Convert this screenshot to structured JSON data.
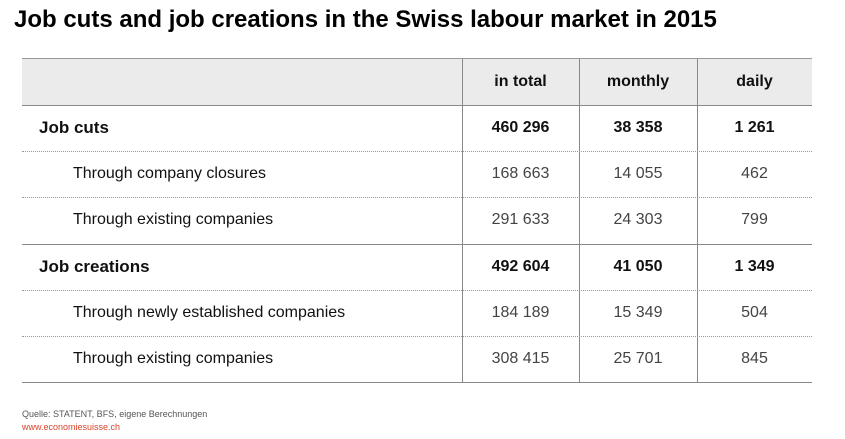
{
  "header": {
    "title": "Job cuts and job creations in the Swiss labour market in 2015"
  },
  "table": {
    "columns": [
      "in total",
      "monthly",
      "daily"
    ],
    "rows": [
      {
        "label": "Job cuts",
        "bold": true,
        "cells": [
          "460 296",
          "38 358",
          "1 261"
        ]
      },
      {
        "label": "Through company closures",
        "bold": false,
        "cells": [
          "168 663",
          "14 055",
          "462"
        ]
      },
      {
        "label": "Through existing companies",
        "bold": false,
        "cells": [
          "291 633",
          "24 303",
          "799"
        ]
      },
      {
        "label": "Job creations",
        "bold": true,
        "cells": [
          "492 604",
          "41 050",
          "1 349"
        ]
      },
      {
        "label": "Through newly established companies",
        "bold": false,
        "cells": [
          "184 189",
          "15 349",
          "504"
        ]
      },
      {
        "label": "Through existing companies",
        "bold": false,
        "cells": [
          "308 415",
          "25 701",
          "845"
        ]
      }
    ]
  },
  "footer": {
    "source": "Quelle: STATENT, BFS, eigene Berechnungen",
    "url": "www.economiesuisse.ch"
  }
}
